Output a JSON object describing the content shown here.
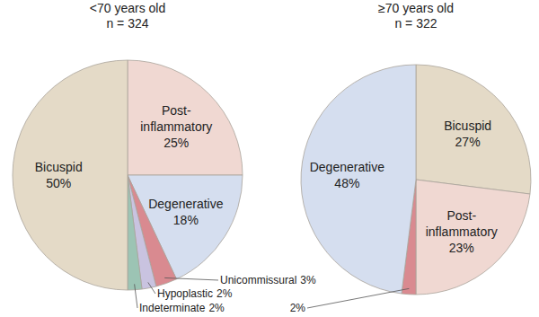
{
  "chart_data": [
    {
      "type": "pie",
      "title": "<70 years old",
      "subtitle": "n = 324",
      "categories": [
        "Post-inflammatory",
        "Degenerative",
        "Unicommissural",
        "Hypoplastic",
        "Indeterminate",
        "Bicuspid"
      ],
      "values": [
        25,
        18,
        3,
        2,
        2,
        50
      ],
      "value_labels": [
        "25%",
        "18%",
        "3%",
        "2%",
        "2%",
        "50%"
      ],
      "colors": [
        "#f0d8d2",
        "#d5deef",
        "#d98a90",
        "#c9c3e0",
        "#9cc4b4",
        "#e4dac7"
      ],
      "data_labels": true
    },
    {
      "type": "pie",
      "title": "≥70 years old",
      "subtitle": "n = 322",
      "categories": [
        "Bicuspid",
        "Post-inflammatory",
        null,
        "Degenerative"
      ],
      "values": [
        27,
        23,
        2,
        48
      ],
      "value_labels": [
        "27%",
        "23%",
        "2%",
        "48%"
      ],
      "colors": [
        "#e4dac7",
        "#f0d8d2",
        "#d98a90",
        "#d5deef"
      ],
      "data_labels": true
    }
  ]
}
